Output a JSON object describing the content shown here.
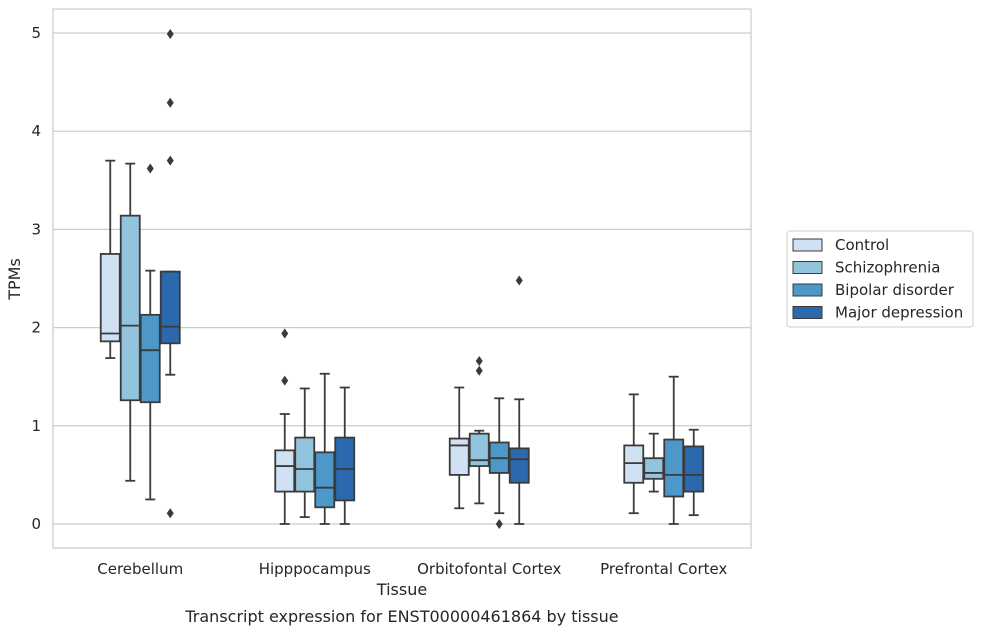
{
  "chart_data": {
    "type": "boxplot",
    "title": "",
    "xlabel": "Tissue",
    "ylabel": "TPMs",
    "caption": "Transcript expression for ENST00000461864 by tissue",
    "ylim": [
      -0.25,
      5.25
    ],
    "yticks": [
      "0",
      "1",
      "2",
      "3",
      "4",
      "5"
    ],
    "grid": "horizontal",
    "legend_position": "right",
    "categories": [
      "Cerebellum",
      "Hipppocampus",
      "Orbitofontal Cortex",
      "Prefrontal Cortex"
    ],
    "series": [
      {
        "name": "Control",
        "color": "#cfe1f2",
        "boxes": [
          {
            "min": 1.69,
            "q1": 1.86,
            "median": 1.94,
            "q3": 2.75,
            "max": 3.7,
            "outliers": []
          },
          {
            "min": 0.0,
            "q1": 0.33,
            "median": 0.59,
            "q3": 0.75,
            "max": 1.12,
            "outliers": [
              1.46,
              1.94
            ]
          },
          {
            "min": 0.16,
            "q1": 0.5,
            "median": 0.8,
            "q3": 0.87,
            "max": 1.39,
            "outliers": []
          },
          {
            "min": 0.11,
            "q1": 0.42,
            "median": 0.62,
            "q3": 0.8,
            "max": 1.32,
            "outliers": []
          }
        ]
      },
      {
        "name": "Schizophrenia",
        "color": "#93c4de",
        "boxes": [
          {
            "min": 0.44,
            "q1": 1.26,
            "median": 2.02,
            "q3": 3.14,
            "max": 3.67,
            "outliers": []
          },
          {
            "min": 0.07,
            "q1": 0.33,
            "median": 0.56,
            "q3": 0.88,
            "max": 1.38,
            "outliers": []
          },
          {
            "min": 0.21,
            "q1": 0.59,
            "median": 0.65,
            "q3": 0.92,
            "max": 0.95,
            "outliers": [
              1.56,
              1.66
            ]
          },
          {
            "min": 0.33,
            "q1": 0.46,
            "median": 0.52,
            "q3": 0.67,
            "max": 0.92,
            "outliers": []
          }
        ]
      },
      {
        "name": "Bipolar disorder",
        "color": "#4b98c9",
        "boxes": [
          {
            "min": 0.25,
            "q1": 1.24,
            "median": 1.77,
            "q3": 2.13,
            "max": 2.58,
            "outliers": [
              3.62
            ]
          },
          {
            "min": 0.0,
            "q1": 0.17,
            "median": 0.37,
            "q3": 0.73,
            "max": 1.53,
            "outliers": []
          },
          {
            "min": 0.11,
            "q1": 0.52,
            "median": 0.67,
            "q3": 0.83,
            "max": 1.28,
            "outliers": [
              0.0
            ]
          },
          {
            "min": 0.0,
            "q1": 0.28,
            "median": 0.5,
            "q3": 0.86,
            "max": 1.5,
            "outliers": []
          }
        ]
      },
      {
        "name": "Major depression",
        "color": "#2a69ae",
        "boxes": [
          {
            "min": 1.52,
            "q1": 1.84,
            "median": 2.01,
            "q3": 2.57,
            "max": 2.57,
            "outliers": [
              0.11,
              3.7,
              4.29,
              4.99
            ]
          },
          {
            "min": 0.0,
            "q1": 0.24,
            "median": 0.56,
            "q3": 0.88,
            "max": 1.39,
            "outliers": []
          },
          {
            "min": 0.0,
            "q1": 0.42,
            "median": 0.66,
            "q3": 0.77,
            "max": 1.27,
            "outliers": [
              2.48
            ]
          },
          {
            "min": 0.09,
            "q1": 0.33,
            "median": 0.5,
            "q3": 0.79,
            "max": 0.96,
            "outliers": []
          }
        ]
      }
    ]
  }
}
